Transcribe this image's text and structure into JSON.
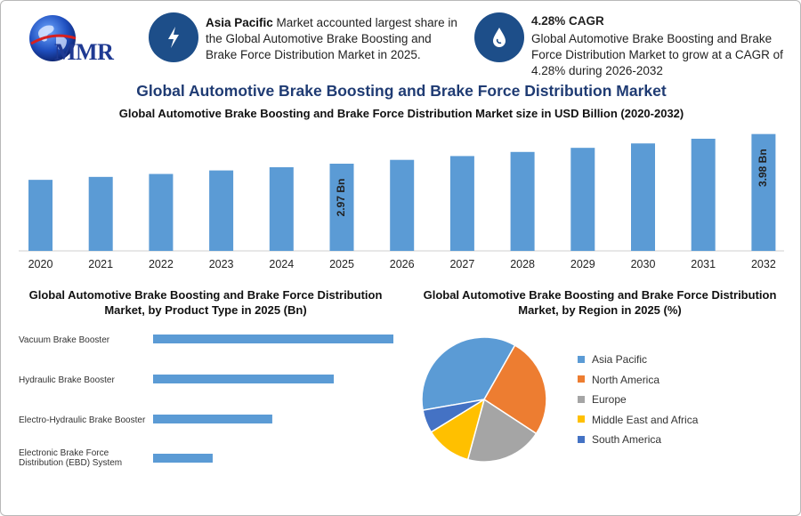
{
  "logo": {
    "text": "MMR"
  },
  "info_boxes": [
    {
      "icon": "bolt-icon",
      "bold": "Asia Pacific",
      "text": " Market accounted largest share in the Global Automotive Brake Boosting and Brake Force Distribution Market in 2025."
    },
    {
      "icon": "drop-icon",
      "bold": "4.28% CAGR",
      "text": "Global Automotive Brake Boosting and Brake Force Distribution Market to grow at a CAGR of 4.28% during 2026-2032"
    }
  ],
  "main_title": "Global Automotive Brake Boosting and Brake Force Distribution Market",
  "chart_data": [
    {
      "type": "bar",
      "title": "Global Automotive Brake Boosting and Brake Force Distribution Market size in USD Billion (2020-2032)",
      "categories": [
        "2020",
        "2021",
        "2022",
        "2023",
        "2024",
        "2025",
        "2026",
        "2027",
        "2028",
        "2029",
        "2030",
        "2031",
        "2032"
      ],
      "values": [
        2.42,
        2.52,
        2.62,
        2.74,
        2.85,
        2.97,
        3.1,
        3.23,
        3.37,
        3.51,
        3.66,
        3.82,
        3.98
      ],
      "data_labels": {
        "2025": "2.97 Bn",
        "2032": "3.98 Bn"
      },
      "color": "#5b9bd5"
    },
    {
      "type": "bar",
      "orientation": "horizontal",
      "title": "Global Automotive Brake Boosting and Brake Force Distribution Market, by Product Type in 2025 (Bn)",
      "categories": [
        "Vacuum Brake Booster",
        "Hydraulic Brake Booster",
        "Electro-Hydraulic Brake Booster",
        "Electronic Brake Force Distribution (EBD) System"
      ],
      "values": [
        1.25,
        0.94,
        0.62,
        0.31
      ],
      "color": "#5b9bd5"
    },
    {
      "type": "pie",
      "title": "Global Automotive Brake Boosting and Brake Force Distribution Market, by Region in 2025 (%)",
      "categories": [
        "Asia Pacific",
        "North America",
        "Europe",
        "Middle East and Africa",
        "South America"
      ],
      "values": [
        36,
        26,
        20,
        12,
        6
      ],
      "colors": [
        "#5b9bd5",
        "#ed7d31",
        "#a5a5a5",
        "#ffc000",
        "#4472c4"
      ],
      "legend": "right"
    }
  ]
}
